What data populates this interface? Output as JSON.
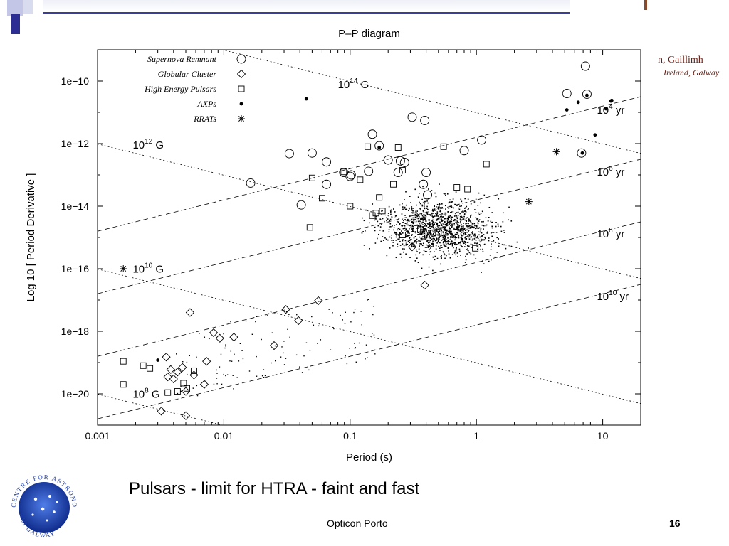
{
  "slide": {
    "caption": "Pulsars - limit for HTRA - faint and fast",
    "footer_center": "Opticon Porto",
    "page_number": "16",
    "institution_line1": "n, Gaillimh",
    "institution_line2": "Ireland, Galway",
    "logo_text_top": "CENTRE FOR ASTRONOMY",
    "logo_text_bottom": "NUI GALWAY"
  },
  "colors": {
    "accent": "#2c2e94",
    "institution": "#6b1f14",
    "logo_blue": "#1f3fb0"
  },
  "chart_data": {
    "type": "scatter",
    "title": "P–Ṗ diagram",
    "xlabel": "Period (s)",
    "ylabel": "Log 10 [ Period Derivative ]",
    "xscale": "log",
    "yscale": "log",
    "xlim": [
      0.001,
      20
    ],
    "ylim": [
      1e-21,
      1e-09
    ],
    "xticks": [
      {
        "v": 0.001,
        "label": "0.001"
      },
      {
        "v": 0.01,
        "label": "0.01"
      },
      {
        "v": 0.1,
        "label": "0.1"
      },
      {
        "v": 1,
        "label": "1"
      },
      {
        "v": 10,
        "label": "10"
      }
    ],
    "yticks": [
      {
        "v": 1e-10,
        "label": "1e−10"
      },
      {
        "v": 1e-12,
        "label": "1e−12"
      },
      {
        "v": 1e-14,
        "label": "1e−14"
      },
      {
        "v": 1e-16,
        "label": "1e−16"
      },
      {
        "v": 1e-18,
        "label": "1e−18"
      },
      {
        "v": 1e-20,
        "label": "1e−20"
      }
    ],
    "legend_placement": "top-left",
    "legend": [
      {
        "label": "Supernova Remnant",
        "marker": "circle"
      },
      {
        "label": "Globular Cluster",
        "marker": "diamond"
      },
      {
        "label": "High Energy Pulsars",
        "marker": "square"
      },
      {
        "label": "AXPs",
        "marker": "dot"
      },
      {
        "label": "RRATs",
        "marker": "asterisk"
      }
    ],
    "field_lines": [
      {
        "B_exp": 14,
        "label_base": "10",
        "label_exp": "14",
        "label_unit": "G",
        "label_at": [
          0.08,
          6e-11
        ]
      },
      {
        "B_exp": 12,
        "label_base": "10",
        "label_exp": "12",
        "label_unit": "G",
        "label_at": [
          0.0019,
          7e-13
        ]
      },
      {
        "B_exp": 10,
        "label_base": "10",
        "label_exp": "10",
        "label_unit": "G",
        "label_at": [
          0.0019,
          7.5e-17
        ]
      },
      {
        "B_exp": 8,
        "label_base": "10",
        "label_exp": "8",
        "label_unit": "G",
        "label_at": [
          0.0019,
          7.5e-21
        ]
      }
    ],
    "age_lines": [
      {
        "age_exp": 4,
        "label_base": "10",
        "label_exp": "4",
        "label_unit": "yr",
        "label_at": [
          9,
          9e-12
        ]
      },
      {
        "age_exp": 6,
        "label_base": "10",
        "label_exp": "6",
        "label_unit": "yr",
        "label_at": [
          9,
          9.5e-14
        ]
      },
      {
        "age_exp": 8,
        "label_base": "10",
        "label_exp": "8",
        "label_unit": "yr",
        "label_at": [
          9,
          1e-15
        ]
      },
      {
        "age_exp": 10,
        "label_base": "10",
        "label_exp": "10",
        "label_unit": "yr",
        "label_at": [
          9,
          1e-17
        ]
      }
    ],
    "series": [
      {
        "name": "Supernova Remnant",
        "marker": "circle",
        "points": [
          [
            0.0163,
            5.5e-14
          ],
          [
            0.033,
            4.8e-13
          ],
          [
            0.05,
            5e-13
          ],
          [
            0.065,
            2.6e-13
          ],
          [
            0.065,
            5e-14
          ],
          [
            0.089,
            1.2e-13
          ],
          [
            0.1,
            9e-14
          ],
          [
            0.102,
            1e-13
          ],
          [
            0.14,
            1.3e-13
          ],
          [
            0.15,
            2e-12
          ],
          [
            0.2,
            3e-13
          ],
          [
            0.24,
            1.2e-13
          ],
          [
            0.27,
            2.5e-13
          ],
          [
            0.31,
            7e-12
          ],
          [
            0.38,
            5e-14
          ],
          [
            0.39,
            5.5e-12
          ],
          [
            0.4,
            1.2e-13
          ],
          [
            0.41,
            2.3e-14
          ],
          [
            0.041,
            1.1e-14
          ],
          [
            0.8,
            6e-13
          ],
          [
            1.1,
            1.3e-12
          ],
          [
            5.2,
            4e-11
          ],
          [
            7.5,
            3.8e-11
          ],
          [
            7.3,
            3e-10
          ],
          [
            6.8,
            5e-13
          ],
          [
            0.25,
            2.8e-13
          ],
          [
            0.17,
            8.5e-13
          ]
        ]
      },
      {
        "name": "Globular Cluster",
        "marker": "diamond",
        "points": [
          [
            0.0032,
            2.8e-21
          ],
          [
            0.0036,
            3.5e-20
          ],
          [
            0.0038,
            6e-20
          ],
          [
            0.004,
            3e-20
          ],
          [
            0.0043,
            5e-20
          ],
          [
            0.0047,
            7e-20
          ],
          [
            0.005,
            1.2e-20
          ],
          [
            0.005,
            2e-21
          ],
          [
            0.0054,
            4e-18
          ],
          [
            0.0058,
            4e-20
          ],
          [
            0.007,
            2e-20
          ],
          [
            0.0073,
            1.1e-19
          ],
          [
            0.0083,
            9e-19
          ],
          [
            0.0093,
            6e-19
          ],
          [
            0.012,
            6.5e-19
          ],
          [
            0.025,
            3.5e-19
          ],
          [
            0.031,
            5e-18
          ],
          [
            0.039,
            2.2e-18
          ],
          [
            0.056,
            9.5e-18
          ],
          [
            0.39,
            3e-17
          ],
          [
            0.31,
            5e-16
          ],
          [
            0.0035,
            1.5e-19
          ]
        ]
      },
      {
        "name": "High Energy Pulsars",
        "marker": "square",
        "points": [
          [
            0.0016,
            1.1e-19
          ],
          [
            0.0016,
            2e-20
          ],
          [
            0.0023,
            8e-20
          ],
          [
            0.0026,
            6.5e-20
          ],
          [
            0.0036,
            1.1e-20
          ],
          [
            0.0043,
            1.2e-20
          ],
          [
            0.0048,
            2.2e-20
          ],
          [
            0.0051,
            1.5e-20
          ],
          [
            0.0058,
            5.5e-20
          ],
          [
            0.048,
            2.1e-15
          ],
          [
            0.06,
            1.8e-14
          ],
          [
            0.089,
            1.25e-13
          ],
          [
            0.1,
            1e-14
          ],
          [
            0.138,
            8e-13
          ],
          [
            0.15,
            5e-15
          ],
          [
            0.17,
            1.9e-14
          ],
          [
            0.22,
            5e-14
          ],
          [
            0.26,
            1.4e-13
          ],
          [
            0.26,
            1.2e-15
          ],
          [
            0.5,
            1.5e-15
          ],
          [
            0.38,
            1.5e-15
          ],
          [
            0.7,
            4e-14
          ],
          [
            0.98,
            4.5e-16
          ],
          [
            0.75,
            2e-15
          ],
          [
            1.2,
            2.2e-13
          ],
          [
            0.05,
            8e-14
          ],
          [
            0.16,
            6e-15
          ],
          [
            0.24,
            7.5e-13
          ],
          [
            0.55,
            8e-13
          ],
          [
            0.85,
            3.5e-14
          ],
          [
            0.12,
            7e-14
          ],
          [
            0.18,
            7e-15
          ],
          [
            0.36,
            1.8e-15
          ]
        ]
      },
      {
        "name": "AXPs",
        "marker": "dot",
        "points": [
          [
            5.2,
            1.2e-11
          ],
          [
            6.4,
            2.1e-11
          ],
          [
            8.7,
            1.9e-12
          ],
          [
            10.6,
            1.3e-11
          ],
          [
            11.8,
            2.4e-11
          ],
          [
            6.9,
            5e-13
          ],
          [
            7.5,
            3.5e-11
          ],
          [
            11.6,
            2.3e-11
          ],
          [
            0.17,
            7.5e-13
          ],
          [
            0.045,
            2.7e-11
          ],
          [
            0.003,
            1.2e-19
          ]
        ]
      },
      {
        "name": "RRATs",
        "marker": "asterisk",
        "points": [
          [
            4.3,
            5.5e-13
          ],
          [
            2.6,
            1.4e-14
          ],
          [
            0.0016,
            1e-16
          ]
        ]
      }
    ]
  }
}
